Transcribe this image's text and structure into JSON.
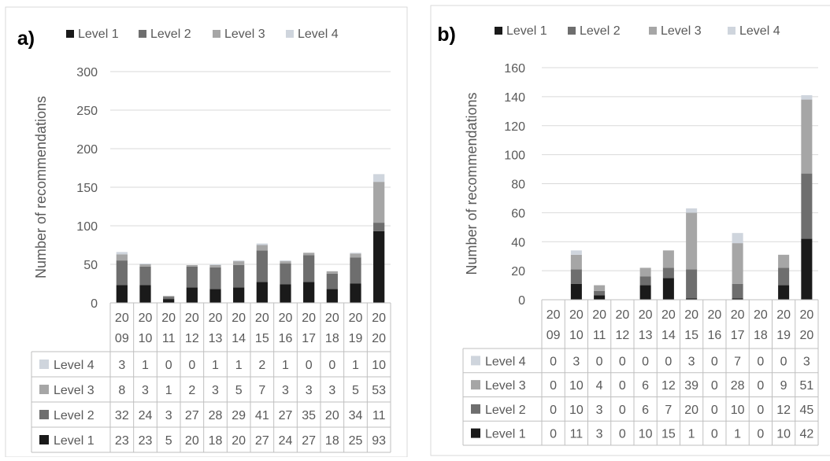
{
  "chart_data": [
    {
      "panel_label": "a)",
      "type": "bar",
      "stacked": true,
      "ylabel": "Number of recommendations",
      "ylim": [
        0,
        300
      ],
      "yticks": [
        0,
        50,
        100,
        150,
        200,
        250,
        300
      ],
      "categories": [
        "2009",
        "2010",
        "2011",
        "2012",
        "2013",
        "2014",
        "2015",
        "2016",
        "2017",
        "2018",
        "2019",
        "2020"
      ],
      "category_lines": [
        [
          "20",
          "09"
        ],
        [
          "20",
          "10"
        ],
        [
          "20",
          "11"
        ],
        [
          "20",
          "12"
        ],
        [
          "20",
          "13"
        ],
        [
          "20",
          "14"
        ],
        [
          "20",
          "15"
        ],
        [
          "20",
          "16"
        ],
        [
          "20",
          "17"
        ],
        [
          "20",
          "18"
        ],
        [
          "20",
          "19"
        ],
        [
          "20",
          "20"
        ]
      ],
      "series": [
        {
          "name": "Level 1",
          "color": "#1a1a1a",
          "values": [
            23,
            23,
            5,
            20,
            18,
            20,
            27,
            24,
            27,
            18,
            25,
            93
          ]
        },
        {
          "name": "Level 2",
          "color": "#6e6e6e",
          "values": [
            32,
            24,
            3,
            27,
            28,
            29,
            41,
            27,
            35,
            20,
            34,
            11
          ]
        },
        {
          "name": "Level 3",
          "color": "#a6a6a6",
          "values": [
            8,
            3,
            1,
            2,
            3,
            5,
            7,
            3,
            3,
            3,
            5,
            53
          ]
        },
        {
          "name": "Level 4",
          "color": "#cfd5dd",
          "values": [
            3,
            1,
            0,
            0,
            1,
            1,
            2,
            1,
            0,
            0,
            1,
            10
          ]
        }
      ],
      "legend_position": "top",
      "grid": true,
      "data_table": true
    },
    {
      "panel_label": "b)",
      "type": "bar",
      "stacked": true,
      "ylabel": "Number of recommendations",
      "ylim": [
        0,
        160
      ],
      "yticks": [
        0,
        20,
        40,
        60,
        80,
        100,
        120,
        140,
        160
      ],
      "categories": [
        "2009",
        "2010",
        "2011",
        "2012",
        "2013",
        "2014",
        "2015",
        "2016",
        "2017",
        "2018",
        "2019",
        "2020"
      ],
      "category_lines": [
        [
          "20",
          "09"
        ],
        [
          "20",
          "10"
        ],
        [
          "20",
          "11"
        ],
        [
          "20",
          "12"
        ],
        [
          "20",
          "13"
        ],
        [
          "20",
          "14"
        ],
        [
          "20",
          "15"
        ],
        [
          "20",
          "16"
        ],
        [
          "20",
          "17"
        ],
        [
          "20",
          "18"
        ],
        [
          "20",
          "19"
        ],
        [
          "20",
          "20"
        ]
      ],
      "series": [
        {
          "name": "Level 1",
          "color": "#1a1a1a",
          "values": [
            0,
            11,
            3,
            0,
            10,
            15,
            1,
            0,
            1,
            0,
            10,
            42
          ]
        },
        {
          "name": "Level 2",
          "color": "#6e6e6e",
          "values": [
            0,
            10,
            3,
            0,
            6,
            7,
            20,
            0,
            10,
            0,
            12,
            45
          ]
        },
        {
          "name": "Level 3",
          "color": "#a6a6a6",
          "values": [
            0,
            10,
            4,
            0,
            6,
            12,
            39,
            0,
            28,
            0,
            9,
            51
          ]
        },
        {
          "name": "Level 4",
          "color": "#cfd5dd",
          "values": [
            0,
            3,
            0,
            0,
            0,
            0,
            3,
            0,
            7,
            0,
            0,
            3
          ]
        }
      ],
      "legend_position": "top",
      "grid": true,
      "data_table": true
    }
  ]
}
